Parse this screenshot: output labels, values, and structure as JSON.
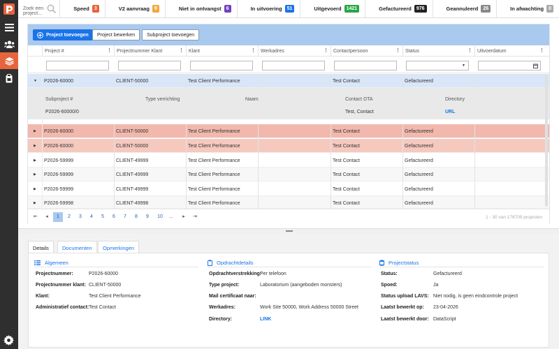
{
  "search": {
    "placeholder": "Zoek een project..."
  },
  "statuses": [
    {
      "label": "Speed",
      "count": "3",
      "color": "#e8643c"
    },
    {
      "label": "V2 aanvraag",
      "count": "9",
      "color": "#f2a93b"
    },
    {
      "label": "Niet in ontvangst",
      "count": "6",
      "color": "#6f42c1"
    },
    {
      "label": "In uitvoering",
      "count": "51",
      "color": "#1a73e8"
    },
    {
      "label": "Uitgevoerd",
      "count": "1421",
      "color": "#28a745"
    },
    {
      "label": "Gefactureerd",
      "count": "976",
      "color": "#222222"
    },
    {
      "label": "Geannuleerd",
      "count": "26",
      "color": "#888888"
    },
    {
      "label": "In afwachting",
      "count": "0",
      "color": "#aaaaaa"
    }
  ],
  "toolbar": {
    "add_project": "Project toevoegen",
    "edit_project": "Project bewerken",
    "add_subproject": "Subproject toevoegen"
  },
  "columns": [
    "Project #",
    "Projectnummer Klant",
    "Klant",
    "Werkadres",
    "Contactpersoon",
    "Status",
    "Uitvoerdatum"
  ],
  "rows": [
    {
      "project": "P2026-60000",
      "client_no": "CLIENT-50000",
      "klant": "Test Client Performance",
      "werkadres": "",
      "contact": "Test Contact",
      "status": "Gefactureerd",
      "date": ""
    },
    {
      "project": "P2026-60000",
      "client_no": "CLIENT-50000",
      "klant": "Test Client Performance",
      "werkadres": "",
      "contact": "Test Contact",
      "status": "Gefactureerd",
      "date": ""
    },
    {
      "project": "P2026-60000",
      "client_no": "CLIENT-50000",
      "klant": "Test Client Performance",
      "werkadres": "",
      "contact": "Test Contact",
      "status": "Gefactureerd",
      "date": ""
    },
    {
      "project": "P2026-59999",
      "client_no": "CLIENT-49999",
      "klant": "Test Client Performance",
      "werkadres": "",
      "contact": "Test Contact",
      "status": "Gefactureerd",
      "date": ""
    },
    {
      "project": "P2026-59999",
      "client_no": "CLIENT-49999",
      "klant": "Test Client Performance",
      "werkadres": "",
      "contact": "Test Contact",
      "status": "Gefactureerd",
      "date": ""
    },
    {
      "project": "P2026-59999",
      "client_no": "CLIENT-49999",
      "klant": "Test Client Performance",
      "werkadres": "",
      "contact": "Test Contact",
      "status": "Gefactureerd",
      "date": ""
    },
    {
      "project": "P2026-59998",
      "client_no": "CLIENT-49998",
      "klant": "Test Client Performance",
      "werkadres": "",
      "contact": "Test Contact",
      "status": "Gefactureerd",
      "date": ""
    }
  ],
  "subgrid": {
    "headers": [
      "Subproject #",
      "Type verrichting",
      "Naam",
      "Contact DTA",
      "Directory"
    ],
    "row": {
      "subproject": "P2026-60000/0",
      "type": "",
      "naam": "",
      "contact": "Test, Contact",
      "directory": "URL"
    }
  },
  "pager": {
    "pages": [
      "1",
      "2",
      "3",
      "4",
      "5",
      "6",
      "7",
      "8",
      "9",
      "10",
      "..."
    ],
    "summary": "1 - 30 van 176709 projecten"
  },
  "tabs": [
    "Details",
    "Documenten",
    "Opmerkingen"
  ],
  "details": {
    "algemeen": {
      "title": "Algemeen",
      "items": [
        {
          "k": "Projectnummer:",
          "v": "P2026-60000"
        },
        {
          "k": "Projectnummer klant:",
          "v": "CLIENT-50000"
        },
        {
          "k": "Klant:",
          "v": "Test Client Performance"
        },
        {
          "k": "Administratief contact:",
          "v": "Test Contact"
        }
      ]
    },
    "opdracht": {
      "title": "Opdrachtdetails",
      "items": [
        {
          "k": "Opdrachtverstrekking:",
          "v": "Per telefoon"
        },
        {
          "k": "Type project:",
          "v": "Laboratorium (aangeboden monsters)"
        },
        {
          "k": "Mail certificaat naar:",
          "v": ""
        },
        {
          "k": "Werkadres:",
          "v": "Work Site 50000, Work Address 50000 Street"
        },
        {
          "k": "Directory:",
          "v": "LINK"
        }
      ]
    },
    "status": {
      "title": "Projectstatus",
      "items": [
        {
          "k": "Status:",
          "v": "Gefactureerd"
        },
        {
          "k": "Spoed:",
          "v": "Ja"
        },
        {
          "k": "Status upload LAVS:",
          "v": "Niet nodig, is geen eindcontrole project"
        },
        {
          "k": "Laatst bewerkt op:",
          "v": "23-04-2026"
        },
        {
          "k": "Laatst bewerkt door:",
          "v": "DataScript"
        }
      ]
    }
  }
}
